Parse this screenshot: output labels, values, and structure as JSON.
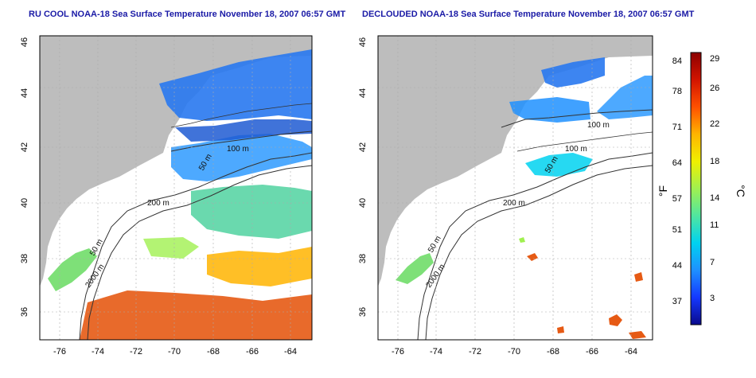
{
  "panels": [
    {
      "title": "RU COOL NOAA-18 Sea Surface Temperature November 18, 2007 06:57 GMT",
      "lat_ticks": [
        "46",
        "44",
        "42",
        "40",
        "38",
        "36"
      ],
      "lon_ticks": [
        "-76",
        "-74",
        "-72",
        "-70",
        "-68",
        "-66",
        "-64"
      ],
      "contour_labels": [
        "100 m",
        "50 m",
        "200 m",
        "50 m",
        "2000 m"
      ]
    },
    {
      "title": "DECLOUDED NOAA-18 Sea Surface Temperature November 18, 2007 06:57 GMT",
      "lat_ticks": [
        "46",
        "44",
        "42",
        "40",
        "38",
        "36"
      ],
      "lon_ticks": [
        "-76",
        "-74",
        "-72",
        "-70",
        "-68",
        "-66",
        "-64"
      ],
      "contour_labels": [
        "100 m",
        "100 m",
        "50 m",
        "200 m",
        "50 m",
        "2000 m"
      ]
    }
  ],
  "colorbar": {
    "fahrenheit_ticks": [
      "84",
      "78",
      "71",
      "64",
      "57",
      "51",
      "44",
      "37"
    ],
    "celsius_ticks": [
      "29",
      "26",
      "22",
      "18",
      "14",
      "11",
      "7",
      "3"
    ],
    "fahrenheit_unit": "°F",
    "celsius_unit": "°C",
    "colors": [
      "#0a0a8c",
      "#1438ff",
      "#1e90ff",
      "#00d2f0",
      "#50e6a0",
      "#a0f050",
      "#f0f000",
      "#ffb400",
      "#ff5000",
      "#d21400",
      "#8c0000"
    ]
  },
  "colors": {
    "land": "#bdbdbd",
    "title": "#1a1aa6",
    "cold_water": "#2878f0",
    "warm_water": "#e65a14"
  }
}
